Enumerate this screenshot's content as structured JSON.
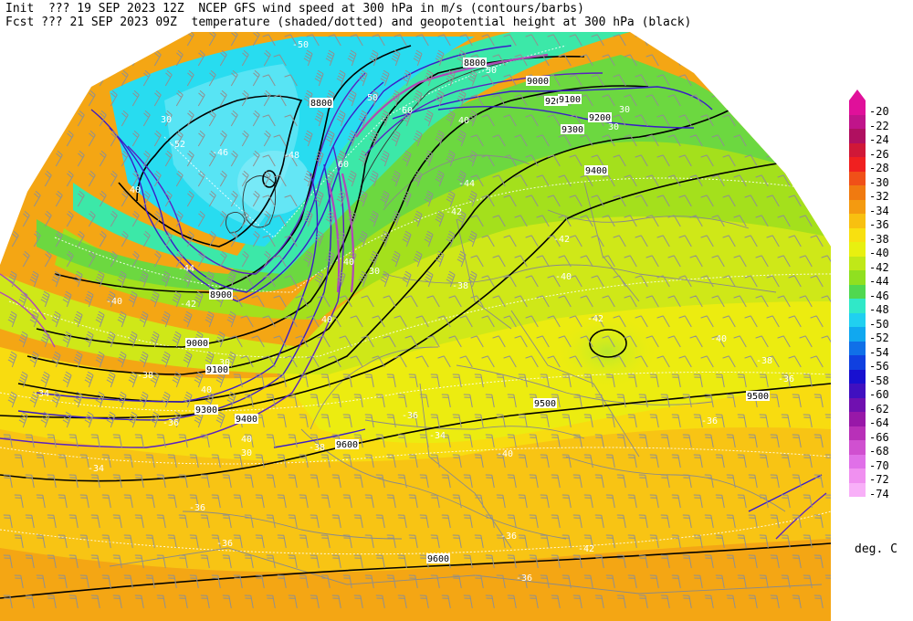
{
  "header": {
    "line1": "Init  ??? 19 SEP 2023 12Z  NCEP GFS wind speed at 300 hPa in m/s (contours/barbs)",
    "line2": "Fcst ??? 21 SEP 2023 09Z  temperature (shaded/dotted) and geopotential height at 300 hPa (black)"
  },
  "legend": {
    "unit": "deg. C",
    "levels": [
      {
        "label": "-20",
        "color": "#e0109a"
      },
      {
        "label": "-22",
        "color": "#c0148a"
      },
      {
        "label": "-24",
        "color": "#b01060"
      },
      {
        "label": "-26",
        "color": "#d01838"
      },
      {
        "label": "-28",
        "color": "#f02020"
      },
      {
        "label": "-30",
        "color": "#f05018"
      },
      {
        "label": "-32",
        "color": "#f07a10"
      },
      {
        "label": "-34",
        "color": "#f49a10"
      },
      {
        "label": "-36",
        "color": "#f8c010"
      },
      {
        "label": "-38",
        "color": "#f8e010"
      },
      {
        "label": "-40",
        "color": "#e8f010"
      },
      {
        "label": "-42",
        "color": "#c0e818"
      },
      {
        "label": "-44",
        "color": "#90e020"
      },
      {
        "label": "-46",
        "color": "#50d850"
      },
      {
        "label": "-48",
        "color": "#30e8c8"
      },
      {
        "label": "-50",
        "color": "#20d0f0"
      },
      {
        "label": "-52",
        "color": "#10a8f0"
      },
      {
        "label": "-54",
        "color": "#1070e8"
      },
      {
        "label": "-56",
        "color": "#1040e0"
      },
      {
        "label": "-58",
        "color": "#1810d0"
      },
      {
        "label": "-60",
        "color": "#4010c0"
      },
      {
        "label": "-62",
        "color": "#7010b0"
      },
      {
        "label": "-64",
        "color": "#9818a8"
      },
      {
        "label": "-66",
        "color": "#b830b8"
      },
      {
        "label": "-68",
        "color": "#d050d0"
      },
      {
        "label": "-70",
        "color": "#e070e8"
      },
      {
        "label": "-72",
        "color": "#f090f0"
      },
      {
        "label": "-74",
        "color": "#f8b0f8"
      }
    ]
  },
  "height_labels": [
    "8800",
    "8900",
    "9000",
    "9100",
    "9200",
    "9300",
    "9400",
    "9500",
    "9600",
    "8800",
    "9000",
    "9100",
    "9200",
    "9300",
    "9400",
    "9500",
    "9600"
  ],
  "temp_labels": [
    "-50",
    "-52",
    "-46",
    "-48",
    "-44",
    "-42",
    "-40",
    "-38",
    "-36",
    "-34",
    "-44",
    "-42",
    "-42",
    "-40",
    "-42",
    "-40",
    "-38",
    "-36",
    "-36",
    "-38",
    "-36",
    "-34",
    "-34",
    "-38",
    "-40",
    "-36",
    "-36",
    "-42",
    "-36",
    "-36"
  ],
  "wind_labels": [
    "30",
    "40",
    "50",
    "60",
    "30",
    "40",
    "30",
    "40",
    "50",
    "60",
    "30",
    "40",
    "30",
    "40",
    "30",
    "40"
  ]
}
